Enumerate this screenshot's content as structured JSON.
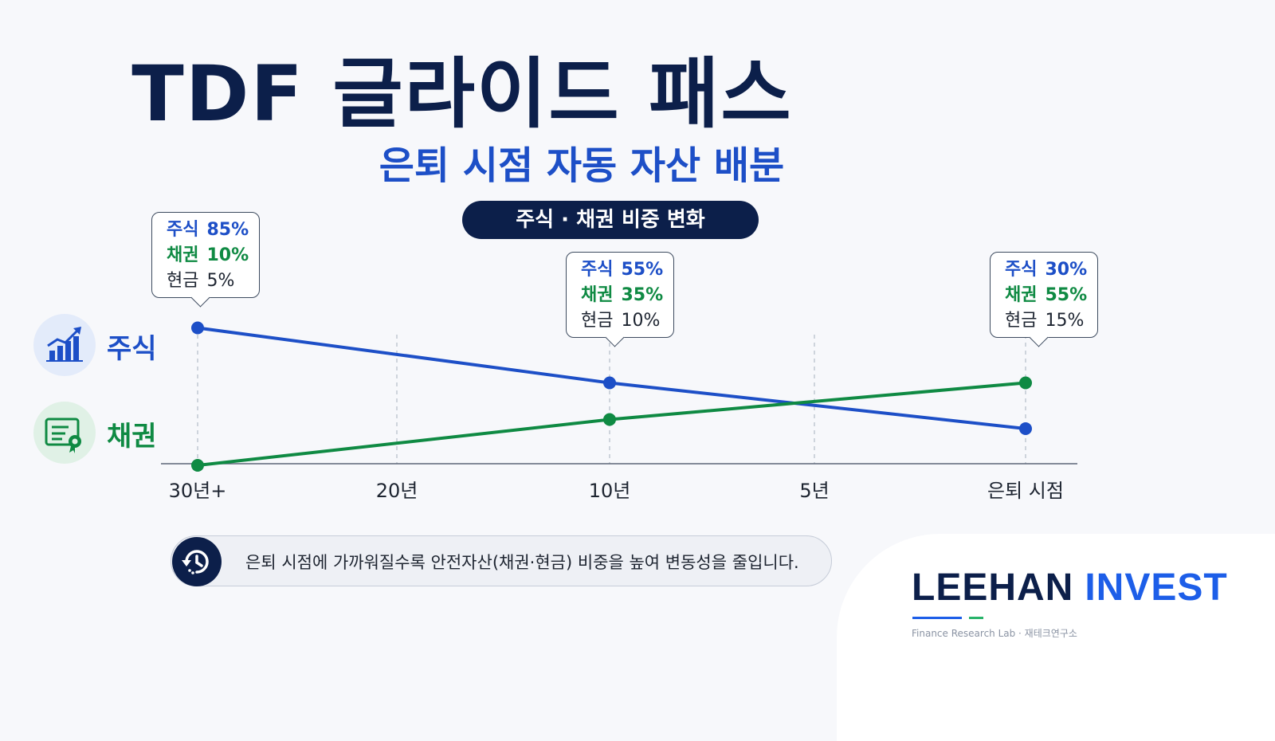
{
  "title": "TDF 글라이드 패스",
  "subtitle": "은퇴 시점 자동 자산 배분",
  "pill": "주식 · 채권 비중 변화",
  "side": {
    "stock_label": "주식",
    "bond_label": "채권",
    "stock_icon": "rising-bar-chart-icon",
    "bond_icon": "certificate-icon"
  },
  "callouts": [
    {
      "stock_label": "주식",
      "stock": "85%",
      "bond_label": "채권",
      "bond": "10%",
      "cash_label": "현금",
      "cash": "5%"
    },
    {
      "stock_label": "주식",
      "stock": "55%",
      "bond_label": "채권",
      "bond": "35%",
      "cash_label": "현금",
      "cash": "10%"
    },
    {
      "stock_label": "주식",
      "stock": "30%",
      "bond_label": "채권",
      "bond": "55%",
      "cash_label": "현금",
      "cash": "15%"
    }
  ],
  "note": "은퇴 시점에 가까워질수록 안전자산(채권·현금) 비중을 높여 변동성을 줄입니다.",
  "brand": {
    "name_a": "LEEHAN",
    "name_b": "INVEST",
    "sub": "Finance Research Lab  ·  재테크연구소"
  },
  "colors": {
    "stock": "#1d4fc7",
    "bond": "#0f8a43",
    "navy": "#0c1f4a"
  },
  "chart_data": {
    "type": "line",
    "categories": [
      "30년+",
      "20년",
      "10년",
      "5년",
      "은퇴 시점"
    ],
    "x": [
      30,
      20,
      10,
      5,
      0
    ],
    "series": [
      {
        "name": "주식",
        "x": [
          30,
          10,
          0
        ],
        "values": [
          85,
          55,
          30
        ]
      },
      {
        "name": "채권",
        "x": [
          30,
          10,
          0
        ],
        "values": [
          10,
          35,
          55
        ]
      }
    ],
    "xlabel": "",
    "ylabel": "",
    "grid": "vertical dashed",
    "legend": "left"
  }
}
